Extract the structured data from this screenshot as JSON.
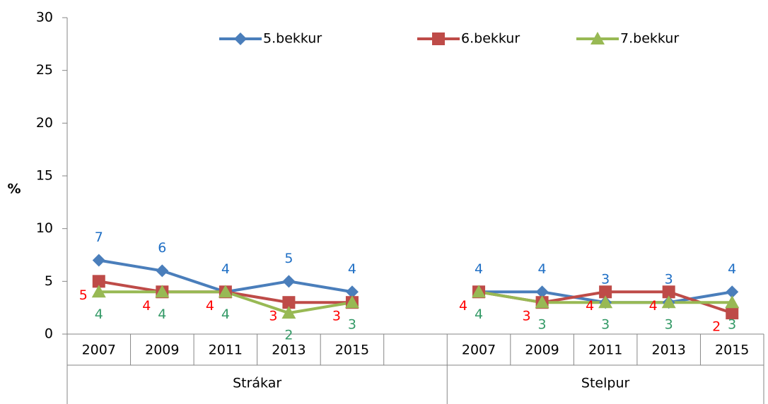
{
  "chart_data": {
    "type": "line",
    "categories": [
      "2007",
      "2009",
      "2011",
      "2013",
      "2015",
      null,
      "2007",
      "2009",
      "2011",
      "2013",
      "2015"
    ],
    "groups": [
      "Strákar",
      "Stelpur"
    ],
    "ylabel": "%",
    "ylim": [
      0,
      30
    ],
    "yticks": [
      0,
      5,
      10,
      15,
      20,
      25,
      30
    ],
    "series": [
      {
        "name": "5.bekkur",
        "color": "#4a7ebb",
        "label_color": "#1f6fc5",
        "marker": "diamond",
        "values": [
          7,
          6,
          4,
          5,
          4,
          null,
          4,
          4,
          3,
          3,
          4
        ]
      },
      {
        "name": "6.bekkur",
        "color": "#be4b48",
        "label_color": "#ff0000",
        "marker": "square",
        "values": [
          5,
          4,
          4,
          3,
          3,
          null,
          4,
          3,
          4,
          4,
          2
        ]
      },
      {
        "name": "7.bekkur",
        "color": "#98b954",
        "label_color": "#339966",
        "marker": "triangle",
        "values": [
          4,
          4,
          4,
          2,
          3,
          null,
          4,
          3,
          3,
          3,
          3
        ]
      }
    ]
  }
}
